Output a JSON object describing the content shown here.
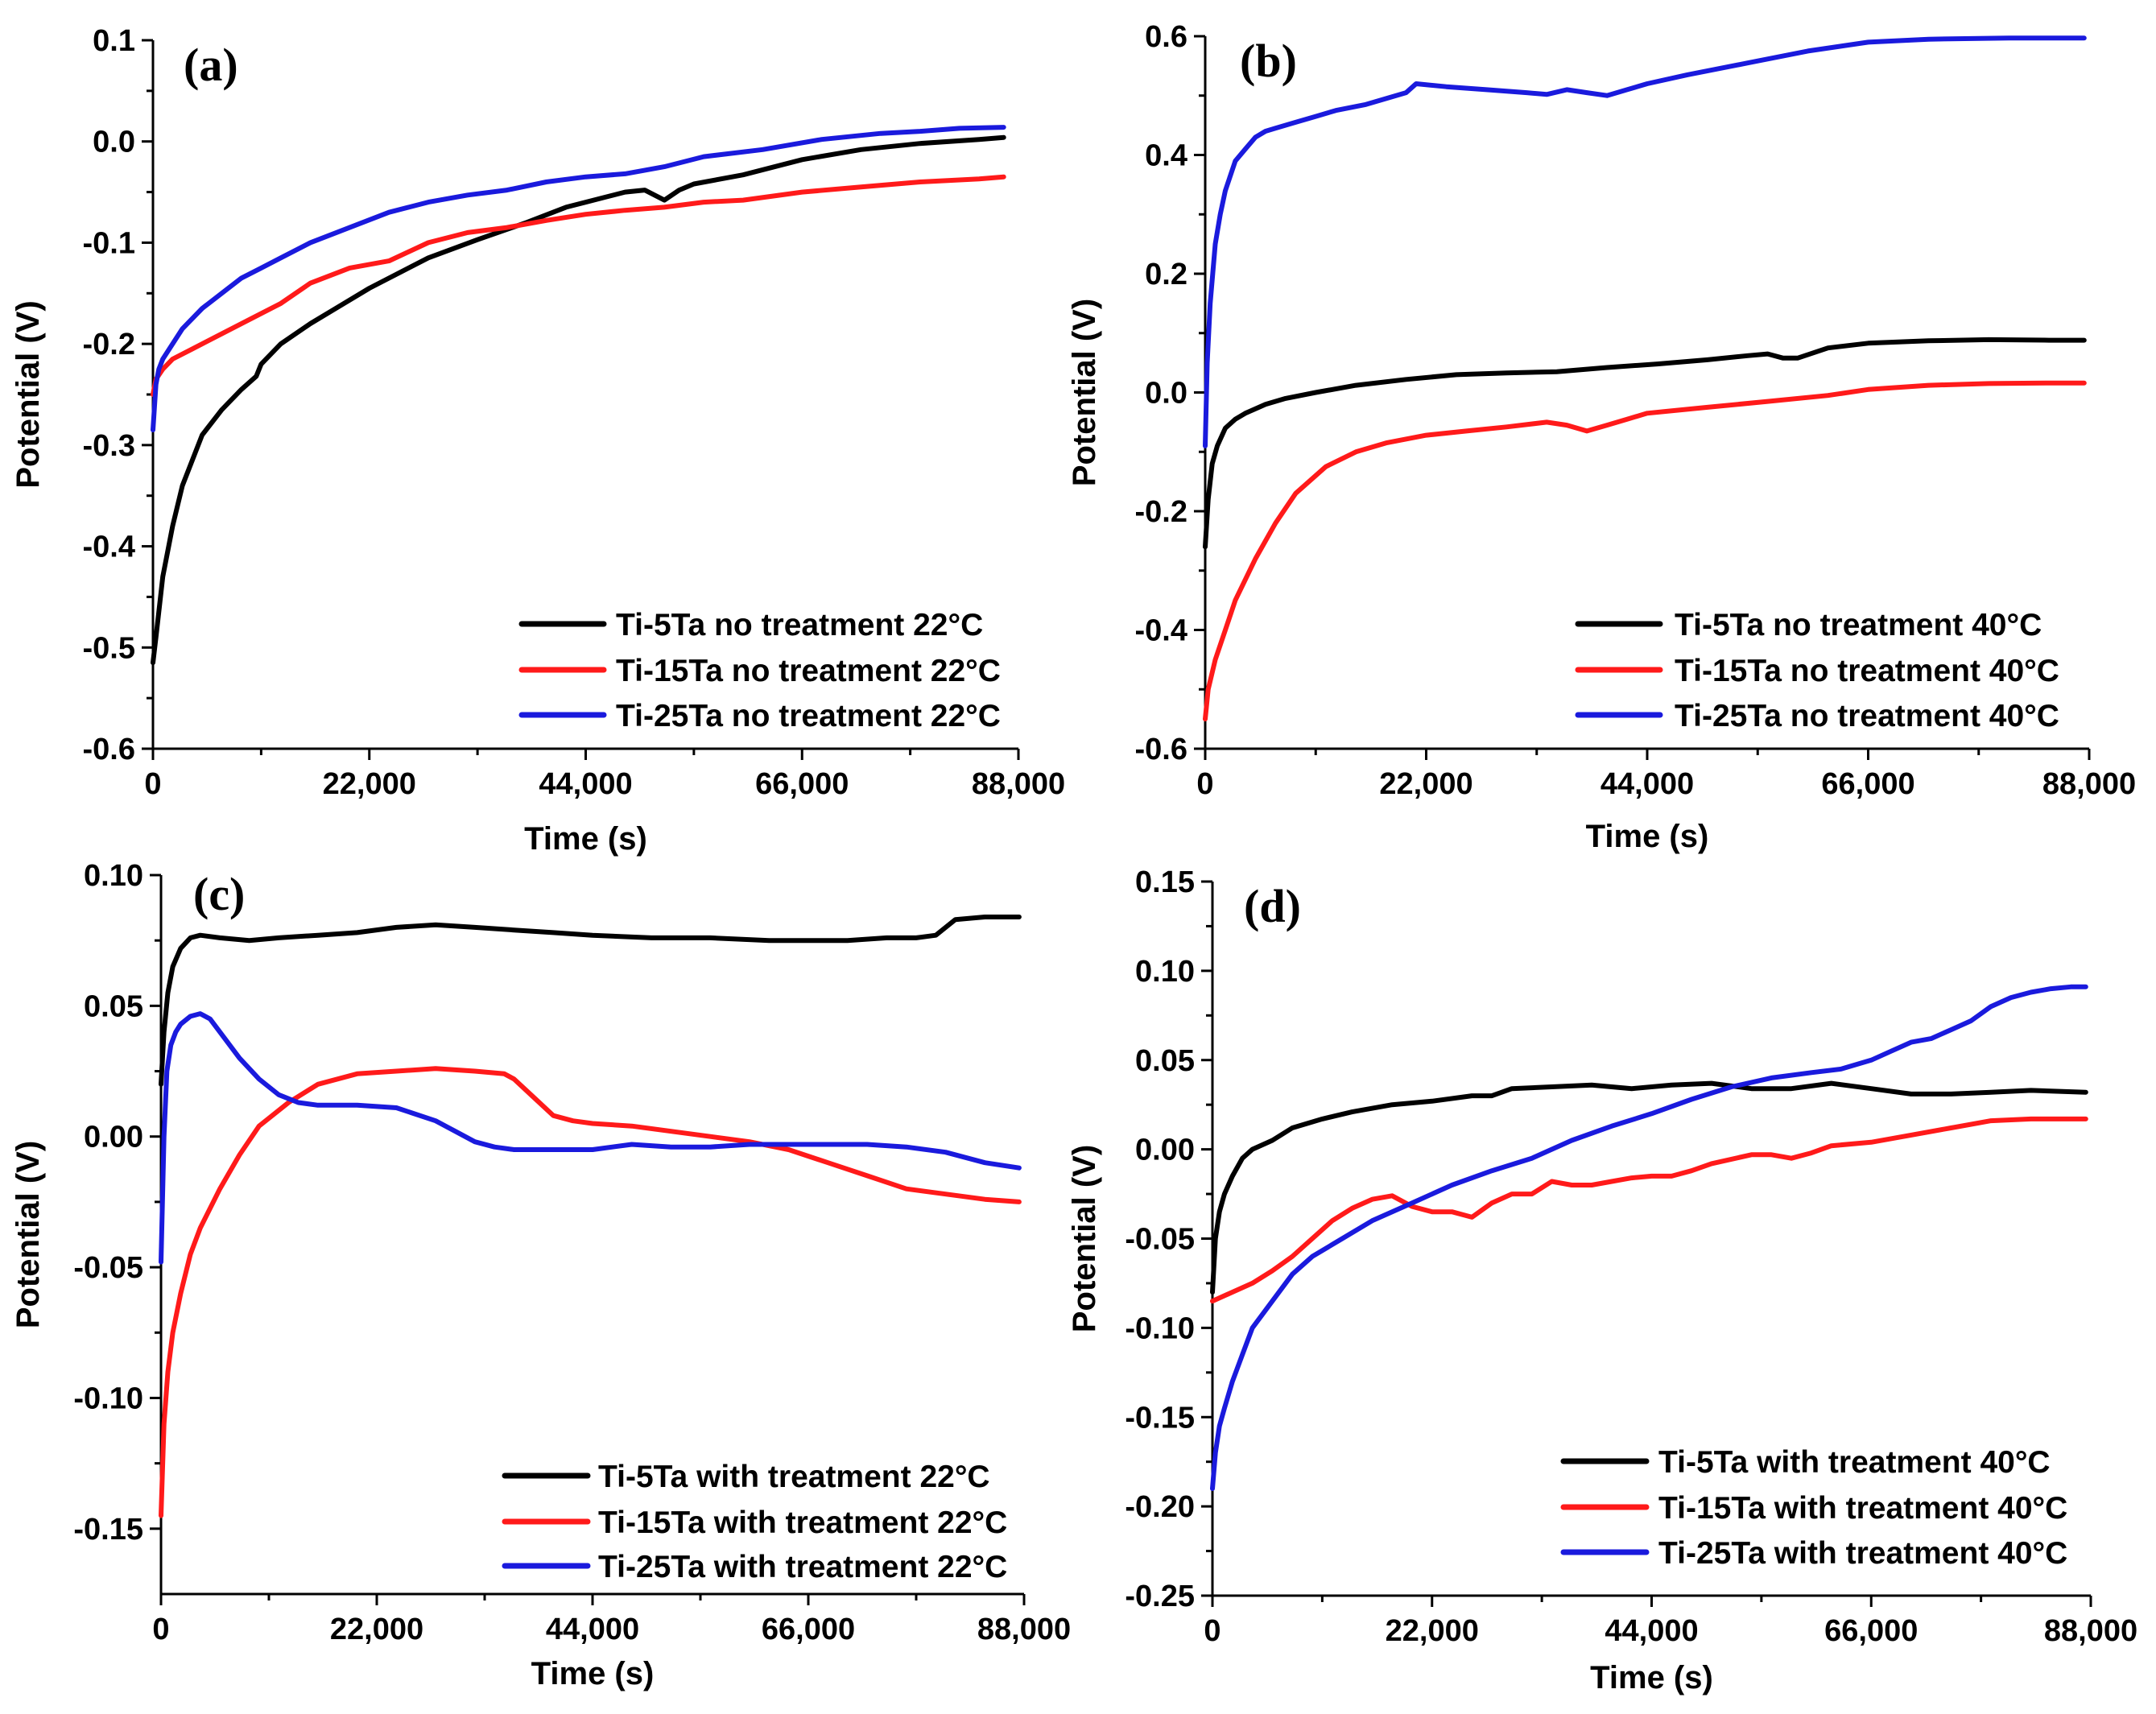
{
  "colors": {
    "black": "#000000",
    "red": "#ff1a1a",
    "blue": "#1a1add"
  },
  "chart_data": [
    {
      "type": "line",
      "panel_label": "(a)",
      "xlabel": "Time (s)",
      "ylabel": "Potential (V)",
      "xlim": [
        0,
        88000
      ],
      "ylim": [
        -0.6,
        0.1
      ],
      "x_ticks": [
        0,
        22000,
        44000,
        66000,
        88000
      ],
      "x_tick_labels": [
        "0",
        "22,000",
        "44,000",
        "66,000",
        "88,000"
      ],
      "y_ticks": [
        -0.6,
        -0.5,
        -0.4,
        -0.3,
        -0.2,
        -0.1,
        0.0,
        0.1
      ],
      "y_tick_labels": [
        "-0.6",
        "-0.5",
        "-0.4",
        "-0.3",
        "-0.2",
        "-0.1",
        "0.0",
        "0.1"
      ],
      "legend_position": "bottom-right",
      "series": [
        {
          "name": "Ti-5Ta no treatment 22°C",
          "color": "black",
          "x": [
            0,
            300,
            1000,
            2000,
            3000,
            5000,
            7000,
            9000,
            10500,
            11000,
            13000,
            16000,
            22000,
            28000,
            33000,
            38000,
            42000,
            46000,
            48000,
            50000,
            51000,
            52000,
            53500,
            55000,
            60000,
            66000,
            72000,
            78000,
            84000,
            86500
          ],
          "y": [
            -0.515,
            -0.49,
            -0.43,
            -0.38,
            -0.34,
            -0.29,
            -0.265,
            -0.245,
            -0.232,
            -0.22,
            -0.2,
            -0.18,
            -0.145,
            -0.115,
            -0.097,
            -0.08,
            -0.065,
            -0.055,
            -0.05,
            -0.048,
            -0.053,
            -0.058,
            -0.048,
            -0.042,
            -0.033,
            -0.018,
            -0.008,
            -0.002,
            0.002,
            0.004
          ]
        },
        {
          "name": "Ti-15Ta no treatment 22°C",
          "color": "red",
          "x": [
            0,
            300,
            1000,
            2000,
            4000,
            7000,
            10000,
            13000,
            16000,
            20000,
            24000,
            28000,
            32000,
            36000,
            40000,
            44000,
            48000,
            52000,
            56000,
            60000,
            66000,
            72000,
            78000,
            84000,
            86500
          ],
          "y": [
            -0.25,
            -0.235,
            -0.225,
            -0.215,
            -0.205,
            -0.19,
            -0.175,
            -0.16,
            -0.14,
            -0.125,
            -0.118,
            -0.1,
            -0.09,
            -0.085,
            -0.078,
            -0.072,
            -0.068,
            -0.065,
            -0.06,
            -0.058,
            -0.05,
            -0.045,
            -0.04,
            -0.037,
            -0.035
          ]
        },
        {
          "name": "Ti-25Ta no treatment 22°C",
          "color": "blue",
          "x": [
            0,
            300,
            600,
            1000,
            2000,
            3000,
            5000,
            7000,
            9000,
            11000,
            13000,
            16000,
            20000,
            24000,
            28000,
            32000,
            36000,
            40000,
            44000,
            48000,
            52000,
            56000,
            62000,
            68000,
            74000,
            78000,
            82000,
            86500
          ],
          "y": [
            -0.285,
            -0.24,
            -0.225,
            -0.215,
            -0.2,
            -0.185,
            -0.165,
            -0.15,
            -0.135,
            -0.125,
            -0.115,
            -0.1,
            -0.085,
            -0.07,
            -0.06,
            -0.053,
            -0.048,
            -0.04,
            -0.035,
            -0.032,
            -0.025,
            -0.015,
            -0.008,
            0.002,
            0.008,
            0.01,
            0.013,
            0.014
          ]
        }
      ]
    },
    {
      "type": "line",
      "panel_label": "(b)",
      "xlabel": "Time (s)",
      "ylabel": "Potential (V)",
      "xlim": [
        0,
        88000
      ],
      "ylim": [
        -0.6,
        0.6
      ],
      "x_ticks": [
        0,
        22000,
        44000,
        66000,
        88000
      ],
      "x_tick_labels": [
        "0",
        "22,000",
        "44,000",
        "66,000",
        "88,000"
      ],
      "y_ticks": [
        -0.6,
        -0.4,
        -0.2,
        0.0,
        0.2,
        0.4,
        0.6
      ],
      "y_tick_labels": [
        "-0.6",
        "-0.4",
        "-0.2",
        "0.0",
        "0.2",
        "0.4",
        "0.6"
      ],
      "legend_position": "bottom-right",
      "series": [
        {
          "name": "Ti-5Ta no treatment 40°C",
          "color": "black",
          "x": [
            0,
            300,
            700,
            1200,
            2000,
            3000,
            4000,
            6000,
            8000,
            11000,
            15000,
            20000,
            25000,
            30000,
            35000,
            40000,
            45000,
            50000,
            54000,
            56000,
            57500,
            59000,
            62000,
            66000,
            72000,
            78000,
            84000,
            87500
          ],
          "y": [
            -0.26,
            -0.18,
            -0.12,
            -0.09,
            -0.06,
            -0.045,
            -0.035,
            -0.02,
            -0.01,
            0.0,
            0.012,
            0.022,
            0.03,
            0.033,
            0.035,
            0.042,
            0.048,
            0.055,
            0.062,
            0.065,
            0.058,
            0.058,
            0.075,
            0.083,
            0.087,
            0.089,
            0.088,
            0.088
          ]
        },
        {
          "name": "Ti-15Ta no treatment 40°C",
          "color": "red",
          "x": [
            0,
            300,
            1000,
            2000,
            3000,
            5000,
            7000,
            9000,
            12000,
            15000,
            18000,
            22000,
            26000,
            30000,
            34000,
            36000,
            38000,
            40000,
            42000,
            44000,
            50000,
            56000,
            62000,
            66000,
            72000,
            78000,
            84000,
            87500
          ],
          "y": [
            -0.55,
            -0.5,
            -0.45,
            -0.4,
            -0.35,
            -0.28,
            -0.22,
            -0.17,
            -0.125,
            -0.1,
            -0.085,
            -0.072,
            -0.065,
            -0.058,
            -0.05,
            -0.055,
            -0.065,
            -0.055,
            -0.045,
            -0.035,
            -0.025,
            -0.015,
            -0.005,
            0.005,
            0.012,
            0.015,
            0.016,
            0.016
          ]
        },
        {
          "name": "Ti-25Ta no treatment 40°C",
          "color": "blue",
          "x": [
            0,
            200,
            500,
            1000,
            1500,
            2000,
            3000,
            4000,
            5000,
            6000,
            7000,
            9000,
            11000,
            13000,
            16000,
            19000,
            20000,
            21000,
            24000,
            28000,
            32000,
            34000,
            36000,
            38000,
            40000,
            42000,
            44000,
            48000,
            54000,
            60000,
            66000,
            72000,
            80000,
            87500
          ],
          "y": [
            -0.09,
            0.05,
            0.15,
            0.25,
            0.3,
            0.34,
            0.39,
            0.41,
            0.43,
            0.44,
            0.445,
            0.455,
            0.465,
            0.475,
            0.485,
            0.5,
            0.505,
            0.52,
            0.515,
            0.51,
            0.505,
            0.502,
            0.51,
            0.505,
            0.5,
            0.51,
            0.52,
            0.535,
            0.555,
            0.575,
            0.59,
            0.595,
            0.597,
            0.597
          ]
        }
      ]
    },
    {
      "type": "line",
      "panel_label": "(c)",
      "xlabel": "Time (s)",
      "ylabel": "Potential (V)",
      "xlim": [
        0,
        88000
      ],
      "ylim": [
        -0.175,
        0.1
      ],
      "x_ticks": [
        0,
        22000,
        44000,
        66000,
        88000
      ],
      "x_tick_labels": [
        "0",
        "22,000",
        "44,000",
        "66,000",
        "88,000"
      ],
      "y_ticks": [
        -0.15,
        -0.1,
        -0.05,
        0.0,
        0.05,
        0.1
      ],
      "y_tick_labels": [
        "-0.15",
        "-0.10",
        "-0.05",
        "0.00",
        "0.05",
        "0.10"
      ],
      "legend_position": "bottom-right",
      "series": [
        {
          "name": "Ti-5Ta with treatment 22°C",
          "color": "black",
          "x": [
            0,
            300,
            700,
            1200,
            2000,
            3000,
            4000,
            6000,
            9000,
            12000,
            16000,
            20000,
            24000,
            28000,
            32000,
            36000,
            40000,
            44000,
            50000,
            56000,
            62000,
            66000,
            70000,
            74000,
            77000,
            79000,
            81000,
            84000,
            87500
          ],
          "y": [
            0.02,
            0.04,
            0.055,
            0.065,
            0.072,
            0.076,
            0.077,
            0.076,
            0.075,
            0.076,
            0.077,
            0.078,
            0.08,
            0.081,
            0.08,
            0.079,
            0.078,
            0.077,
            0.076,
            0.076,
            0.075,
            0.075,
            0.075,
            0.076,
            0.076,
            0.077,
            0.083,
            0.084,
            0.084
          ]
        },
        {
          "name": "Ti-15Ta with treatment 22°C",
          "color": "red",
          "x": [
            0,
            300,
            700,
            1200,
            2000,
            3000,
            4000,
            6000,
            8000,
            10000,
            13000,
            16000,
            20000,
            24000,
            28000,
            32000,
            35000,
            36000,
            38000,
            40000,
            42000,
            44000,
            48000,
            52000,
            56000,
            60000,
            64000,
            68000,
            72000,
            76000,
            80000,
            84000,
            87500
          ],
          "y": [
            -0.145,
            -0.11,
            -0.09,
            -0.075,
            -0.06,
            -0.045,
            -0.035,
            -0.02,
            -0.007,
            0.004,
            0.013,
            0.02,
            0.024,
            0.025,
            0.026,
            0.025,
            0.024,
            0.022,
            0.015,
            0.008,
            0.006,
            0.005,
            0.004,
            0.002,
            0.0,
            -0.002,
            -0.005,
            -0.01,
            -0.015,
            -0.02,
            -0.022,
            -0.024,
            -0.025
          ]
        },
        {
          "name": "Ti-25Ta with treatment 22°C",
          "color": "blue",
          "x": [
            0,
            300,
            600,
            1000,
            1500,
            2000,
            3000,
            4000,
            5000,
            6000,
            8000,
            10000,
            12000,
            14000,
            16000,
            20000,
            24000,
            28000,
            30000,
            32000,
            34000,
            36000,
            40000,
            44000,
            48000,
            52000,
            56000,
            60000,
            64000,
            68000,
            72000,
            76000,
            80000,
            84000,
            87500
          ],
          "y": [
            -0.048,
            0.0,
            0.025,
            0.035,
            0.04,
            0.043,
            0.046,
            0.047,
            0.045,
            0.04,
            0.03,
            0.022,
            0.016,
            0.013,
            0.012,
            0.012,
            0.011,
            0.006,
            0.002,
            -0.002,
            -0.004,
            -0.005,
            -0.005,
            -0.005,
            -0.003,
            -0.004,
            -0.004,
            -0.003,
            -0.003,
            -0.003,
            -0.003,
            -0.004,
            -0.006,
            -0.01,
            -0.012
          ]
        }
      ]
    },
    {
      "type": "line",
      "panel_label": "(d)",
      "xlabel": "Time (s)",
      "ylabel": "Potential (V)",
      "xlim": [
        0,
        88000
      ],
      "ylim": [
        -0.25,
        0.15
      ],
      "x_ticks": [
        0,
        22000,
        44000,
        66000,
        88000
      ],
      "x_tick_labels": [
        "0",
        "22,000",
        "44,000",
        "66,000",
        "88,000"
      ],
      "y_ticks": [
        -0.25,
        -0.2,
        -0.15,
        -0.1,
        -0.05,
        0.0,
        0.05,
        0.1,
        0.15
      ],
      "y_tick_labels": [
        "-0.25",
        "-0.20",
        "-0.15",
        "-0.10",
        "-0.05",
        "0.00",
        "0.05",
        "0.10",
        "0.15"
      ],
      "legend_position": "bottom-right",
      "series": [
        {
          "name": "Ti-5Ta with treatment 40°C",
          "color": "black",
          "x": [
            0,
            300,
            700,
            1200,
            2000,
            3000,
            4000,
            6000,
            8000,
            11000,
            14000,
            18000,
            22000,
            26000,
            28000,
            30000,
            34000,
            38000,
            42000,
            46000,
            50000,
            54000,
            58000,
            62000,
            66000,
            70000,
            74000,
            78000,
            82000,
            87500
          ],
          "y": [
            -0.08,
            -0.05,
            -0.035,
            -0.025,
            -0.015,
            -0.005,
            0.0,
            0.005,
            0.012,
            0.017,
            0.021,
            0.025,
            0.027,
            0.03,
            0.03,
            0.034,
            0.035,
            0.036,
            0.034,
            0.036,
            0.037,
            0.034,
            0.034,
            0.037,
            0.034,
            0.031,
            0.031,
            0.032,
            0.033,
            0.032
          ]
        },
        {
          "name": "Ti-15Ta with treatment 40°C",
          "color": "red",
          "x": [
            0,
            2000,
            4000,
            6000,
            8000,
            10000,
            12000,
            14000,
            16000,
            18000,
            20000,
            22000,
            24000,
            26000,
            28000,
            30000,
            32000,
            34000,
            36000,
            38000,
            40000,
            42000,
            44000,
            46000,
            48000,
            50000,
            54000,
            56000,
            58000,
            60000,
            62000,
            66000,
            70000,
            74000,
            78000,
            82000,
            87500
          ],
          "y": [
            -0.085,
            -0.08,
            -0.075,
            -0.068,
            -0.06,
            -0.05,
            -0.04,
            -0.033,
            -0.028,
            -0.026,
            -0.032,
            -0.035,
            -0.035,
            -0.038,
            -0.03,
            -0.025,
            -0.025,
            -0.018,
            -0.02,
            -0.02,
            -0.018,
            -0.016,
            -0.015,
            -0.015,
            -0.012,
            -0.008,
            -0.003,
            -0.003,
            -0.005,
            -0.002,
            0.002,
            0.004,
            0.008,
            0.012,
            0.016,
            0.017,
            0.017
          ]
        },
        {
          "name": "Ti-25Ta with treatment 40°C",
          "color": "blue",
          "x": [
            0,
            300,
            700,
            1200,
            2000,
            3000,
            4000,
            6000,
            8000,
            10000,
            13000,
            16000,
            20000,
            24000,
            28000,
            32000,
            36000,
            40000,
            44000,
            48000,
            52000,
            56000,
            60000,
            63000,
            66000,
            68000,
            70000,
            72000,
            74000,
            76000,
            78000,
            80000,
            82000,
            84000,
            86000,
            87500
          ],
          "y": [
            -0.19,
            -0.17,
            -0.155,
            -0.145,
            -0.13,
            -0.115,
            -0.1,
            -0.085,
            -0.07,
            -0.06,
            -0.05,
            -0.04,
            -0.03,
            -0.02,
            -0.012,
            -0.005,
            0.005,
            0.013,
            0.02,
            0.028,
            0.035,
            0.04,
            0.043,
            0.045,
            0.05,
            0.055,
            0.06,
            0.062,
            0.067,
            0.072,
            0.08,
            0.085,
            0.088,
            0.09,
            0.091,
            0.091
          ]
        }
      ]
    }
  ]
}
